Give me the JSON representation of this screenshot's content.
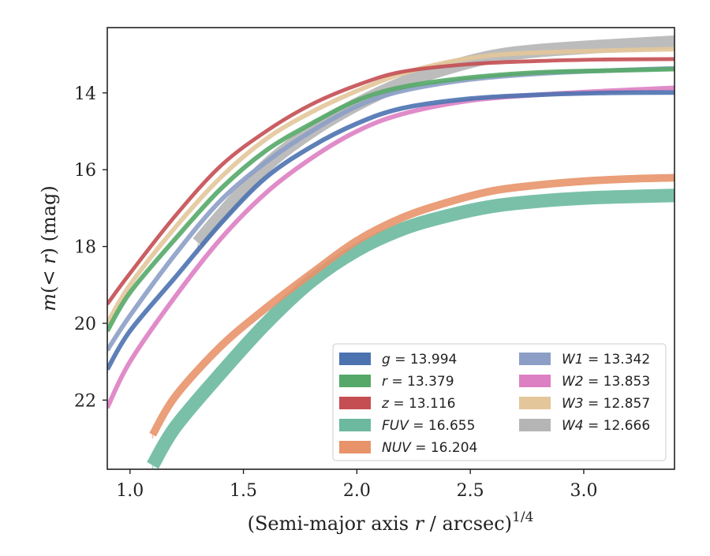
{
  "chart_data": {
    "type": "line",
    "xlabel": "(Semi-major axis r / arcsec)^1/4",
    "ylabel": "m(< r) (mag)",
    "xlim": [
      0.9,
      3.4
    ],
    "ylim": [
      23.8,
      12.3
    ],
    "y_inverted": true,
    "xticks": [
      "1.0",
      "1.5",
      "2.0",
      "2.5",
      "3.0"
    ],
    "yticks": [
      "14",
      "16",
      "18",
      "20",
      "22"
    ],
    "xtick_values": [
      1.0,
      1.5,
      2.0,
      2.5,
      3.0
    ],
    "ytick_values": [
      14,
      16,
      18,
      20,
      22
    ],
    "legend_placement": "lower-right",
    "legend_columns": 2,
    "series": [
      {
        "band": "g",
        "label": "g = 13.994",
        "color": "#4c72b0",
        "total": 13.994,
        "bright_start": 20.6,
        "faint_start": 21.3,
        "width": 0.12,
        "x": [
          0.9,
          1.0,
          1.2,
          1.4,
          1.6,
          1.8,
          2.0,
          2.2,
          2.5,
          2.8,
          3.1,
          3.4
        ],
        "y": [
          21.2,
          20.2,
          18.8,
          17.4,
          16.2,
          15.4,
          14.8,
          14.4,
          14.15,
          14.05,
          14.0,
          13.99
        ]
      },
      {
        "band": "r",
        "label": "r = 13.379",
        "color": "#55a868",
        "total": 13.379,
        "bright_start": 20.0,
        "faint_start": 20.5,
        "width": 0.12,
        "x": [
          0.9,
          1.0,
          1.2,
          1.4,
          1.6,
          1.8,
          2.0,
          2.2,
          2.5,
          2.8,
          3.1,
          3.4
        ],
        "y": [
          20.2,
          19.2,
          17.8,
          16.5,
          15.5,
          14.8,
          14.2,
          13.85,
          13.6,
          13.47,
          13.42,
          13.38
        ]
      },
      {
        "band": "z",
        "label": "z = 13.116",
        "color": "#c44e52",
        "total": 13.116,
        "bright_start": 19.4,
        "faint_start": 19.6,
        "width": 0.1,
        "x": [
          0.9,
          1.0,
          1.2,
          1.4,
          1.6,
          1.8,
          2.0,
          2.2,
          2.5,
          2.8,
          3.1,
          3.4
        ],
        "y": [
          19.5,
          18.7,
          17.2,
          15.9,
          15.0,
          14.3,
          13.8,
          13.45,
          13.25,
          13.17,
          13.13,
          13.12
        ]
      },
      {
        "band": "FUV",
        "label": "FUV = 16.655",
        "color": "#6cb9a0",
        "total": 16.655,
        "bright_start": 23.0,
        "faint_start": 23.8,
        "width": 0.35,
        "x": [
          1.1,
          1.2,
          1.4,
          1.6,
          1.8,
          2.0,
          2.2,
          2.4,
          2.6,
          2.8,
          3.0,
          3.2,
          3.4
        ],
        "y": [
          23.7,
          22.7,
          21.3,
          20.0,
          18.9,
          18.1,
          17.55,
          17.2,
          16.95,
          16.82,
          16.74,
          16.7,
          16.67
        ]
      },
      {
        "band": "NUV",
        "label": "NUV = 16.204",
        "color": "#e8936a",
        "total": 16.204,
        "bright_start": 22.6,
        "faint_start": 23.0,
        "width": 0.2,
        "x": [
          1.1,
          1.2,
          1.4,
          1.6,
          1.8,
          2.0,
          2.2,
          2.4,
          2.6,
          2.8,
          3.0,
          3.2,
          3.4
        ],
        "y": [
          22.9,
          21.9,
          20.6,
          19.6,
          18.7,
          17.85,
          17.25,
          16.85,
          16.55,
          16.4,
          16.3,
          16.24,
          16.21
        ]
      },
      {
        "band": "W1",
        "label": "W1 = 13.342",
        "color": "#8c9ec6",
        "total": 13.342,
        "bright_start": 20.4,
        "faint_start": 20.8,
        "width": 0.12,
        "x": [
          0.9,
          1.0,
          1.2,
          1.4,
          1.6,
          1.8,
          2.0,
          2.2,
          2.5,
          2.8,
          3.1,
          3.4
        ],
        "y": [
          20.7,
          19.8,
          18.2,
          16.8,
          15.8,
          15.0,
          14.35,
          13.95,
          13.65,
          13.5,
          13.42,
          13.36
        ]
      },
      {
        "band": "W2",
        "label": "W2 = 13.853",
        "color": "#dd7fc3",
        "total": 13.853,
        "bright_start": 18.6,
        "faint_start": 22.2,
        "width": 0.12,
        "x": [
          0.9,
          1.0,
          1.2,
          1.4,
          1.6,
          1.8,
          2.0,
          2.2,
          2.5,
          2.8,
          3.1,
          3.4
        ],
        "y": [
          22.2,
          21.0,
          19.3,
          17.8,
          16.6,
          15.7,
          15.0,
          14.55,
          14.2,
          14.05,
          13.95,
          13.87
        ]
      },
      {
        "band": "W3",
        "label": "W3 = 12.857",
        "color": "#e3c69a",
        "total": 12.857,
        "bright_start": 19.6,
        "faint_start": 20.2,
        "width": 0.12,
        "x": [
          0.9,
          1.0,
          1.2,
          1.4,
          1.6,
          1.8,
          2.0,
          2.2,
          2.4,
          2.6,
          2.8,
          3.1,
          3.4
        ],
        "y": [
          20.0,
          19.0,
          17.5,
          16.2,
          15.2,
          14.5,
          13.95,
          13.5,
          13.2,
          13.02,
          12.95,
          12.9,
          12.86
        ]
      },
      {
        "band": "W4",
        "label": "W4 = 12.666",
        "color": "#b5b5b5",
        "total": 12.666,
        "bright_start": 17.6,
        "faint_start": 18.2,
        "width": 0.35,
        "x": [
          1.3,
          1.4,
          1.6,
          1.8,
          2.0,
          2.2,
          2.4,
          2.6,
          2.8,
          3.1,
          3.4
        ],
        "y": [
          17.9,
          17.2,
          15.9,
          15.0,
          14.3,
          13.75,
          13.35,
          13.05,
          12.9,
          12.78,
          12.68
        ]
      }
    ]
  }
}
